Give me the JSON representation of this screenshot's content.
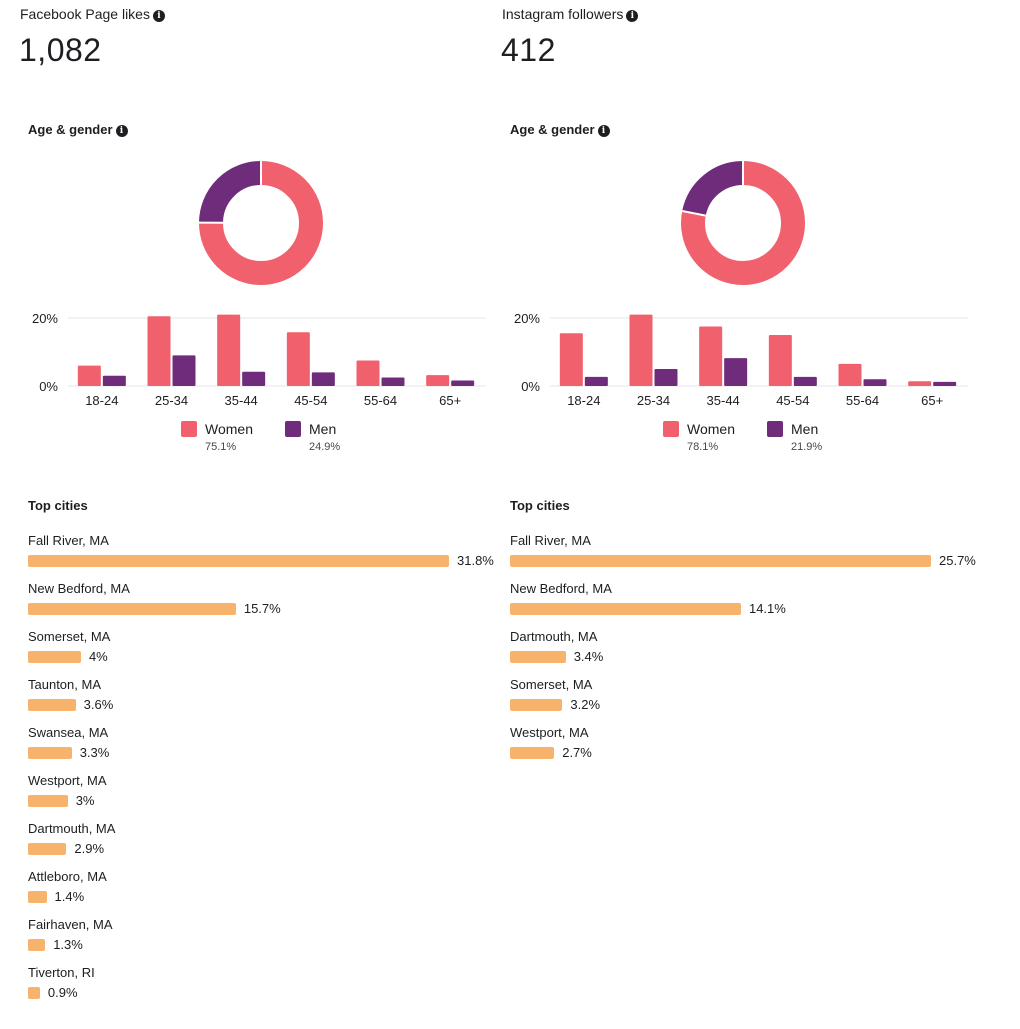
{
  "colors": {
    "women": "#f0616d",
    "men": "#6e2c7a",
    "city_bar": "#f7b26b",
    "gridline": "#e4e6eb"
  },
  "panels": [
    {
      "metric_label": "Facebook Page likes",
      "metric_value": "1,082",
      "age_gender_title": "Age & gender",
      "top_cities_title": "Top cities",
      "legend": [
        {
          "name": "Women",
          "pct": "75.1%"
        },
        {
          "name": "Men",
          "pct": "24.9%"
        }
      ],
      "cities": [
        {
          "name": "Fall River, MA",
          "value": 31.8,
          "label": "31.8%"
        },
        {
          "name": "New Bedford, MA",
          "value": 15.7,
          "label": "15.7%"
        },
        {
          "name": "Somerset, MA",
          "value": 4,
          "label": "4%"
        },
        {
          "name": "Taunton, MA",
          "value": 3.6,
          "label": "3.6%"
        },
        {
          "name": "Swansea, MA",
          "value": 3.3,
          "label": "3.3%"
        },
        {
          "name": "Westport, MA",
          "value": 3,
          "label": "3%"
        },
        {
          "name": "Dartmouth, MA",
          "value": 2.9,
          "label": "2.9%"
        },
        {
          "name": "Attleboro, MA",
          "value": 1.4,
          "label": "1.4%"
        },
        {
          "name": "Fairhaven, MA",
          "value": 1.3,
          "label": "1.3%"
        },
        {
          "name": "Tiverton, RI",
          "value": 0.9,
          "label": "0.9%"
        }
      ]
    },
    {
      "metric_label": "Instagram followers",
      "metric_value": "412",
      "age_gender_title": "Age & gender",
      "top_cities_title": "Top cities",
      "legend": [
        {
          "name": "Women",
          "pct": "78.1%"
        },
        {
          "name": "Men",
          "pct": "21.9%"
        }
      ],
      "cities": [
        {
          "name": "Fall River, MA",
          "value": 25.7,
          "label": "25.7%"
        },
        {
          "name": "New Bedford, MA",
          "value": 14.1,
          "label": "14.1%"
        },
        {
          "name": "Dartmouth, MA",
          "value": 3.4,
          "label": "3.4%"
        },
        {
          "name": "Somerset, MA",
          "value": 3.2,
          "label": "3.2%"
        },
        {
          "name": "Westport, MA",
          "value": 2.7,
          "label": "2.7%"
        }
      ]
    }
  ],
  "chart_data": [
    {
      "type": "pie",
      "labels": [
        "Women",
        "Men"
      ],
      "values": [
        75.1,
        24.9
      ]
    },
    {
      "type": "bar",
      "categories": [
        "18-24",
        "25-34",
        "35-44",
        "45-54",
        "55-64",
        "65+"
      ],
      "y_ticks": [
        "0%",
        "20%"
      ],
      "ylim": [
        0,
        20
      ],
      "series": [
        {
          "name": "Women",
          "values": [
            6,
            20.5,
            21,
            15.8,
            7.5,
            3.2
          ]
        },
        {
          "name": "Men",
          "values": [
            3,
            9,
            4.2,
            4,
            2.5,
            1.6
          ]
        }
      ]
    },
    {
      "type": "bar",
      "orientation": "horizontal",
      "categories": [
        "Fall River, MA",
        "New Bedford, MA",
        "Somerset, MA",
        "Taunton, MA",
        "Swansea, MA",
        "Westport, MA",
        "Dartmouth, MA",
        "Attleboro, MA",
        "Fairhaven, MA",
        "Tiverton, RI"
      ],
      "values": [
        31.8,
        15.7,
        4,
        3.6,
        3.3,
        3,
        2.9,
        1.4,
        1.3,
        0.9
      ]
    },
    {
      "type": "pie",
      "labels": [
        "Women",
        "Men"
      ],
      "values": [
        78.1,
        21.9
      ]
    },
    {
      "type": "bar",
      "categories": [
        "18-24",
        "25-34",
        "35-44",
        "45-54",
        "55-64",
        "65+"
      ],
      "y_ticks": [
        "0%",
        "20%"
      ],
      "ylim": [
        0,
        20
      ],
      "series": [
        {
          "name": "Women",
          "values": [
            15.5,
            21,
            17.5,
            15,
            6.5,
            1.4
          ]
        },
        {
          "name": "Men",
          "values": [
            2.7,
            5,
            8.2,
            2.7,
            2,
            1.2
          ]
        }
      ]
    },
    {
      "type": "bar",
      "orientation": "horizontal",
      "categories": [
        "Fall River, MA",
        "New Bedford, MA",
        "Dartmouth, MA",
        "Somerset, MA",
        "Westport, MA"
      ],
      "values": [
        25.7,
        14.1,
        3.4,
        3.2,
        2.7
      ]
    }
  ]
}
